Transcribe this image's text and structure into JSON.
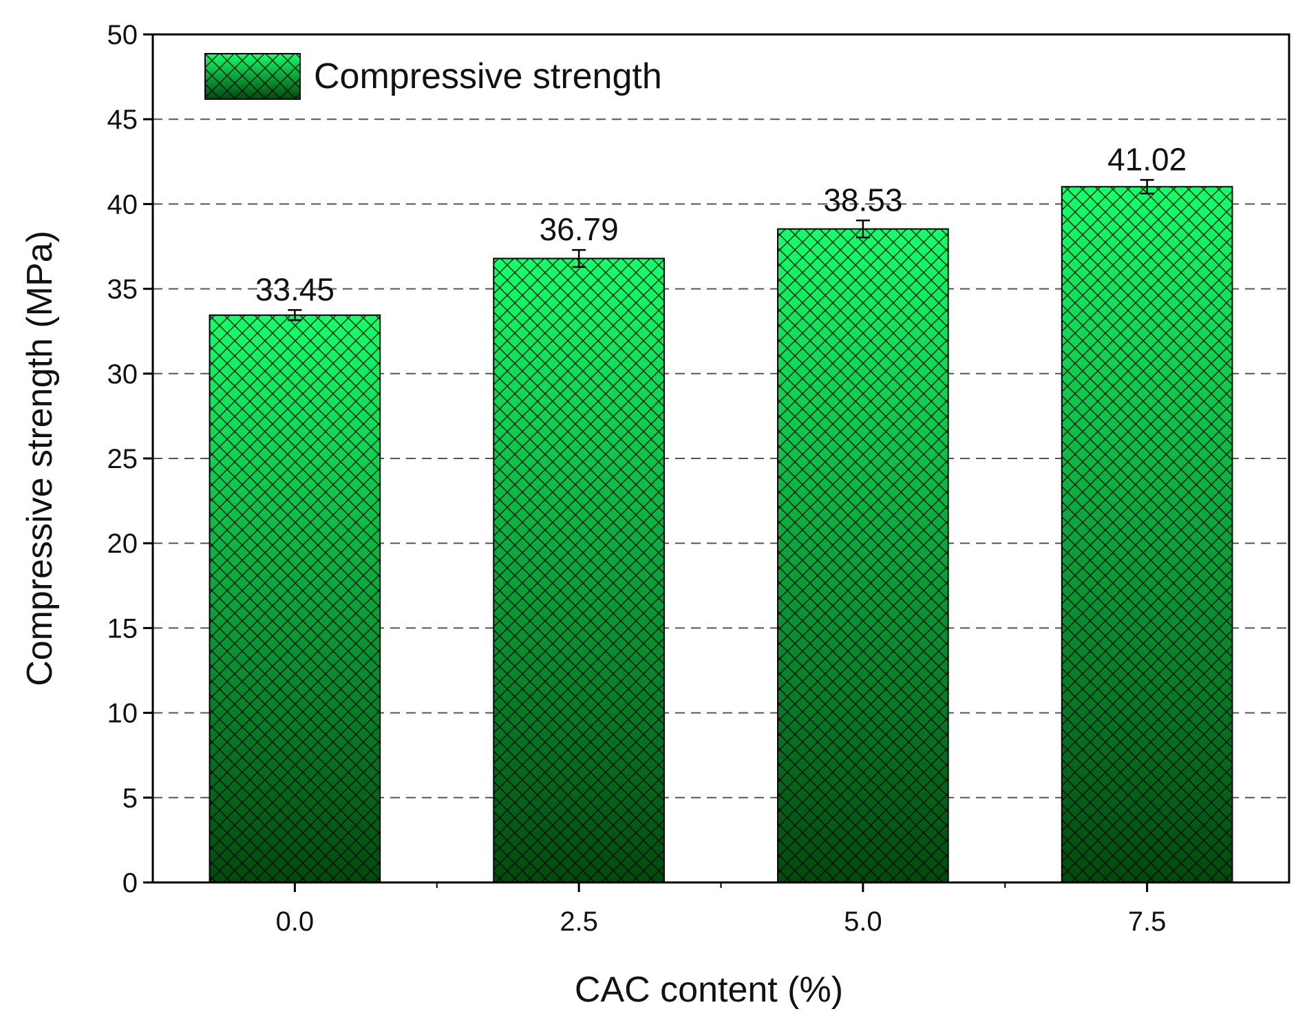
{
  "chart_data": {
    "type": "bar",
    "x_label": "CAC content (%)",
    "y_label": "Compressive strength (MPa)",
    "categories": [
      "0.0",
      "2.5",
      "5.0",
      "7.5"
    ],
    "series": [
      {
        "name": "Compressive strength",
        "color": "#14ff6a",
        "gradient_end": "#004a0c",
        "values": [
          33.45,
          36.79,
          38.53,
          41.02
        ],
        "errors": [
          0.3,
          0.5,
          0.5,
          0.4
        ]
      }
    ],
    "ylim": [
      0,
      50
    ],
    "yticks": [
      0,
      5,
      10,
      15,
      20,
      25,
      30,
      35,
      40,
      45,
      50
    ],
    "grid": true,
    "legend": "top-left"
  }
}
